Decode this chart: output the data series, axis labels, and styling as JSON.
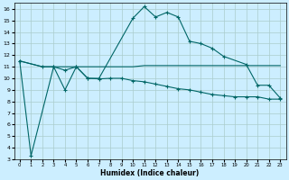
{
  "xlabel": "Humidex (Indice chaleur)",
  "background_color": "#cceeff",
  "grid_color": "#aacccc",
  "line_color": "#006666",
  "xlim": [
    -0.5,
    23.5
  ],
  "ylim": [
    3,
    16.5
  ],
  "xticks": [
    0,
    1,
    2,
    3,
    4,
    5,
    6,
    7,
    8,
    9,
    10,
    11,
    12,
    13,
    14,
    15,
    16,
    17,
    18,
    19,
    20,
    21,
    22,
    23
  ],
  "yticks": [
    3,
    4,
    5,
    6,
    7,
    8,
    9,
    10,
    11,
    12,
    13,
    14,
    15,
    16
  ],
  "line1_x": [
    0,
    1,
    3,
    4,
    5,
    6,
    7,
    10,
    11,
    12,
    13,
    14,
    15,
    16,
    17,
    18,
    20,
    21,
    22,
    23
  ],
  "line1_y": [
    11.5,
    3.3,
    11.0,
    9.0,
    11.0,
    10.0,
    10.0,
    15.2,
    16.2,
    15.3,
    15.7,
    15.3,
    13.2,
    13.0,
    12.6,
    11.9,
    11.2,
    9.4,
    9.4,
    8.3
  ],
  "line2_x": [
    0,
    2,
    3,
    4,
    5,
    6,
    7,
    8,
    9,
    10,
    11,
    12,
    13,
    14,
    15,
    16,
    17,
    18,
    19,
    20,
    21,
    22,
    23
  ],
  "line2_y": [
    11.5,
    11.0,
    11.0,
    11.0,
    11.0,
    11.0,
    11.0,
    11.0,
    11.0,
    11.0,
    11.1,
    11.1,
    11.1,
    11.1,
    11.1,
    11.1,
    11.1,
    11.1,
    11.1,
    11.1,
    11.1,
    11.1,
    11.1
  ],
  "line3_x": [
    0,
    2,
    3,
    4,
    5,
    6,
    7,
    8,
    9,
    10,
    11,
    12,
    13,
    14,
    15,
    16,
    17,
    18,
    19,
    20,
    21,
    22,
    23
  ],
  "line3_y": [
    11.5,
    11.0,
    11.0,
    10.7,
    11.0,
    10.0,
    9.95,
    10.0,
    10.0,
    9.8,
    9.7,
    9.5,
    9.3,
    9.1,
    9.0,
    8.8,
    8.6,
    8.5,
    8.4,
    8.4,
    8.4,
    8.2,
    8.2
  ]
}
